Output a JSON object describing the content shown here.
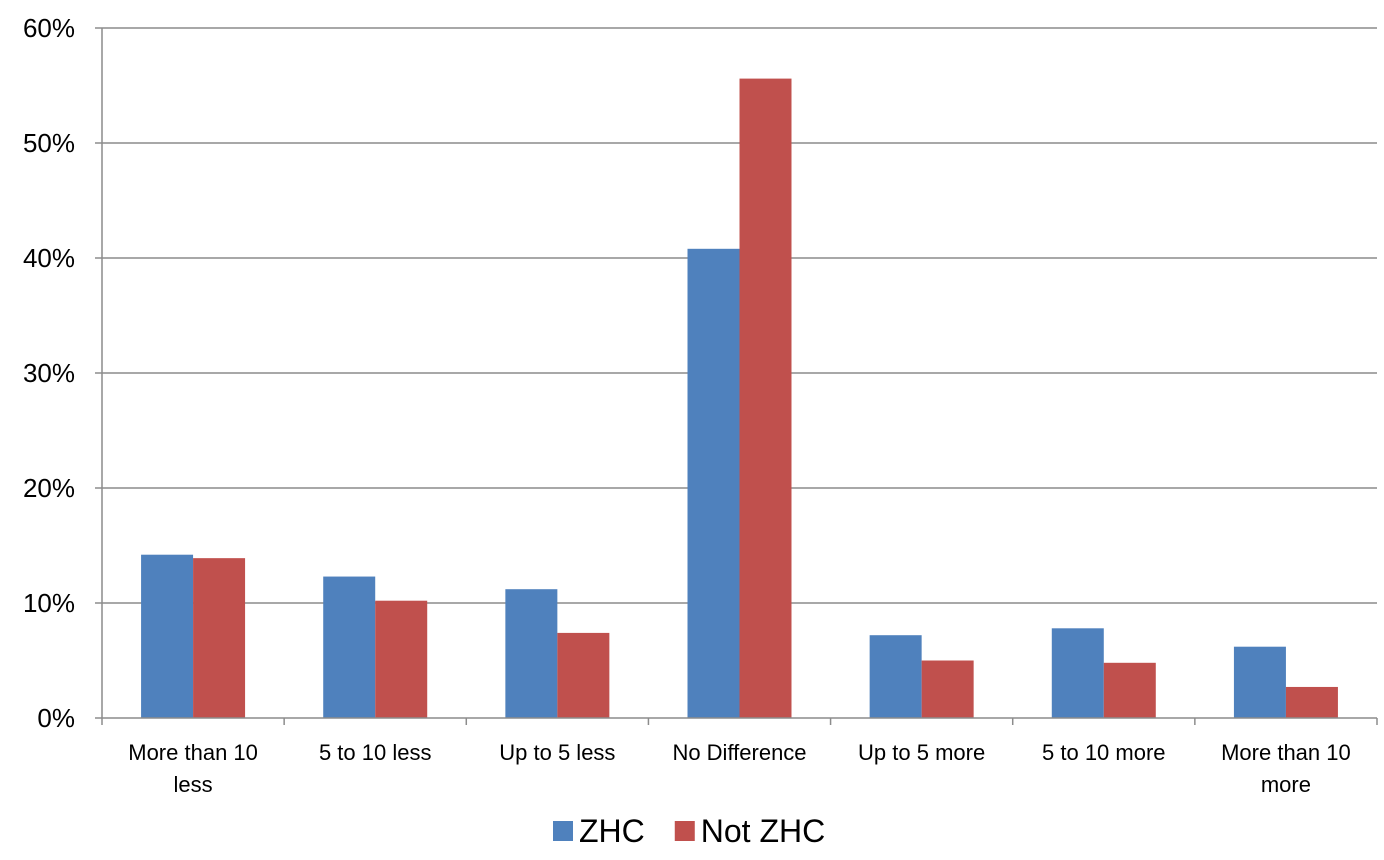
{
  "chart_data": {
    "type": "bar",
    "categories": [
      [
        "More than  10",
        "less"
      ],
      [
        "5 to 10 less"
      ],
      [
        "Up to 5 less"
      ],
      [
        "No Difference"
      ],
      [
        "Up to 5 more"
      ],
      [
        "5 to 10 more"
      ],
      [
        "More than  10",
        "more"
      ]
    ],
    "series": [
      {
        "name": "ZHC",
        "values": [
          14.2,
          12.3,
          11.2,
          40.8,
          7.2,
          7.8,
          6.2
        ],
        "color": "#4F81BD"
      },
      {
        "name": "Not ZHC",
        "values": [
          13.9,
          10.2,
          7.4,
          55.6,
          5.0,
          4.8,
          2.7
        ],
        "color": "#C0504D"
      }
    ],
    "yticks": [
      "0%",
      "10%",
      "20%",
      "30%",
      "40%",
      "50%",
      "60%"
    ],
    "ylim": [
      0,
      60
    ],
    "grid": true,
    "gridline_color": "#8c8c8c",
    "legend_position": "bottom",
    "title": "",
    "xlabel": "",
    "ylabel": ""
  }
}
